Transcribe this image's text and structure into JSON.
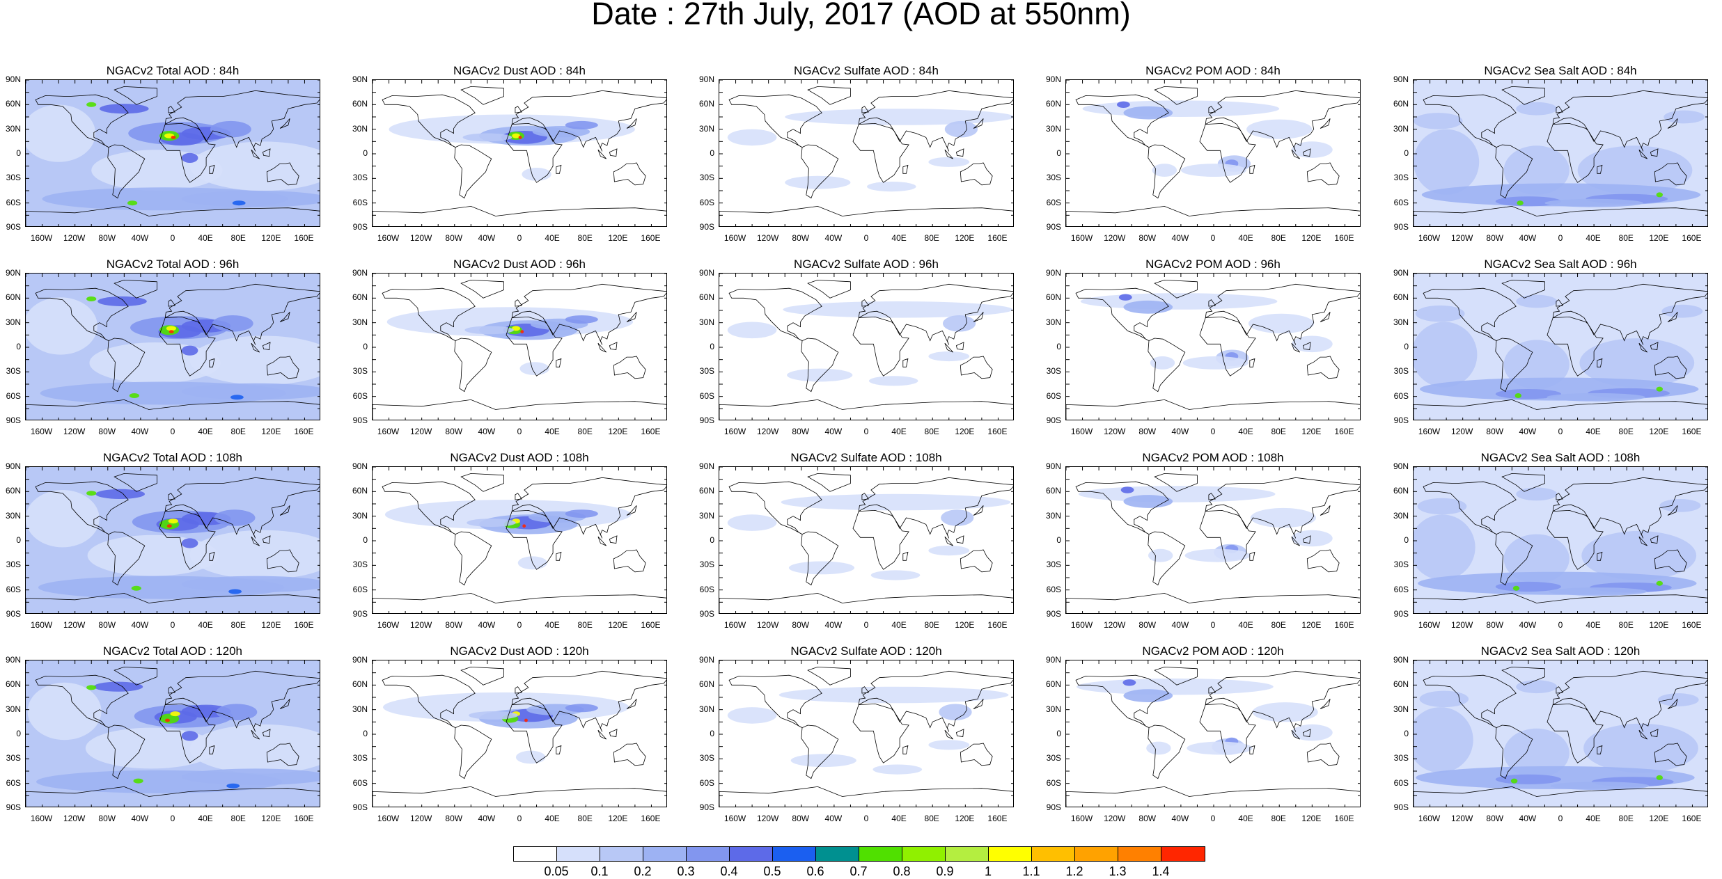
{
  "title": "Date : 27th July, 2017 (AOD at 550nm)",
  "panels": [
    {
      "title": "NGACv2 Total AOD : 84h",
      "species": "total"
    },
    {
      "title": "NGACv2 Dust AOD : 84h",
      "species": "dust"
    },
    {
      "title": "NGACv2 Sulfate AOD : 84h",
      "species": "sulfate"
    },
    {
      "title": "NGACv2 POM AOD : 84h",
      "species": "pom"
    },
    {
      "title": "NGACv2 Sea Salt AOD : 84h",
      "species": "seasalt"
    },
    {
      "title": "NGACv2 Total AOD : 96h",
      "species": "total"
    },
    {
      "title": "NGACv2 Dust AOD : 96h",
      "species": "dust"
    },
    {
      "title": "NGACv2 Sulfate AOD : 96h",
      "species": "sulfate"
    },
    {
      "title": "NGACv2 POM AOD : 96h",
      "species": "pom"
    },
    {
      "title": "NGACv2 Sea Salt AOD : 96h",
      "species": "seasalt"
    },
    {
      "title": "NGACv2 Total AOD : 108h",
      "species": "total"
    },
    {
      "title": "NGACv2 Dust AOD : 108h",
      "species": "dust"
    },
    {
      "title": "NGACv2 Sulfate AOD : 108h",
      "species": "sulfate"
    },
    {
      "title": "NGACv2 POM AOD : 108h",
      "species": "pom"
    },
    {
      "title": "NGACv2 Sea Salt AOD : 108h",
      "species": "seasalt"
    },
    {
      "title": "NGACv2 Total AOD : 120h",
      "species": "total"
    },
    {
      "title": "NGACv2 Dust AOD : 120h",
      "species": "dust"
    },
    {
      "title": "NGACv2 Sulfate AOD : 120h",
      "species": "sulfate"
    },
    {
      "title": "NGACv2 POM AOD : 120h",
      "species": "pom"
    },
    {
      "title": "NGACv2 Sea Salt  AOD : 120h",
      "species": "seasalt"
    }
  ],
  "lat_labels": [
    "90N",
    "60N",
    "30N",
    "0",
    "30S",
    "60S",
    "90S"
  ],
  "lon_labels": [
    "160W",
    "120W",
    "80W",
    "40W",
    "0",
    "40E",
    "80E",
    "120E",
    "160E"
  ],
  "colorbar": {
    "colors": [
      "#ffffff",
      "#d6e0fb",
      "#b8c8f6",
      "#9db2f3",
      "#8296ef",
      "#5d6ae8",
      "#1b5ff0",
      "#009090",
      "#50e000",
      "#90f000",
      "#b4ee40",
      "#ffff00",
      "#ffbf00",
      "#ffa200",
      "#ff8000",
      "#ff2600"
    ],
    "labels": [
      "0.05",
      "0.1",
      "0.2",
      "0.3",
      "0.4",
      "0.5",
      "0.6",
      "0.7",
      "0.8",
      "0.9",
      "1",
      "1.1",
      "1.2",
      "1.3",
      "1.4"
    ]
  }
}
